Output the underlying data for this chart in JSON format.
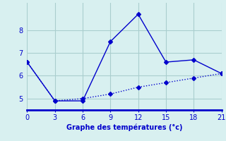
{
  "line1_x": [
    0,
    3,
    6,
    9,
    12,
    15,
    18,
    21
  ],
  "line1_y": [
    6.6,
    4.9,
    4.9,
    7.5,
    8.7,
    6.6,
    6.7,
    6.1
  ],
  "line2_x": [
    0,
    3,
    6,
    9,
    12,
    15,
    18,
    21
  ],
  "line2_y": [
    6.6,
    4.9,
    5.0,
    5.2,
    5.5,
    5.7,
    5.9,
    6.1
  ],
  "line_color": "#0000cc",
  "background_color": "#d8f0f0",
  "grid_color": "#aacece",
  "xlabel": "Graphe des températures (°c)",
  "xlim": [
    0,
    21
  ],
  "ylim": [
    4.5,
    9.2
  ],
  "yticks": [
    5,
    6,
    7,
    8
  ],
  "xticks": [
    0,
    3,
    6,
    9,
    12,
    15,
    18,
    21
  ],
  "xlabel_color": "#0000cc",
  "axis_color": "#0000cc",
  "tick_color": "#0000cc",
  "markersize": 3,
  "linewidth": 1.0
}
